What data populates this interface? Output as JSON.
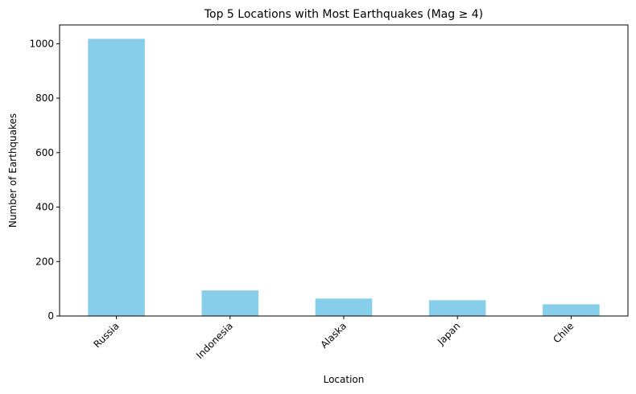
{
  "chart_data": {
    "type": "bar",
    "title": "Top 5 Locations with Most Earthquakes (Mag ≥ 4)",
    "xlabel": "Location",
    "ylabel": "Number of Earthquakes",
    "categories": [
      "Russia",
      "Indonesia",
      "Alaska",
      "Japan",
      "Chile"
    ],
    "values": [
      1018,
      94,
      64,
      58,
      43
    ],
    "ylim": [
      0,
      1069
    ],
    "yticks": [
      0,
      200,
      400,
      600,
      800,
      1000
    ],
    "bar_color": "#87ceeb",
    "grid": false,
    "legend": "none"
  }
}
